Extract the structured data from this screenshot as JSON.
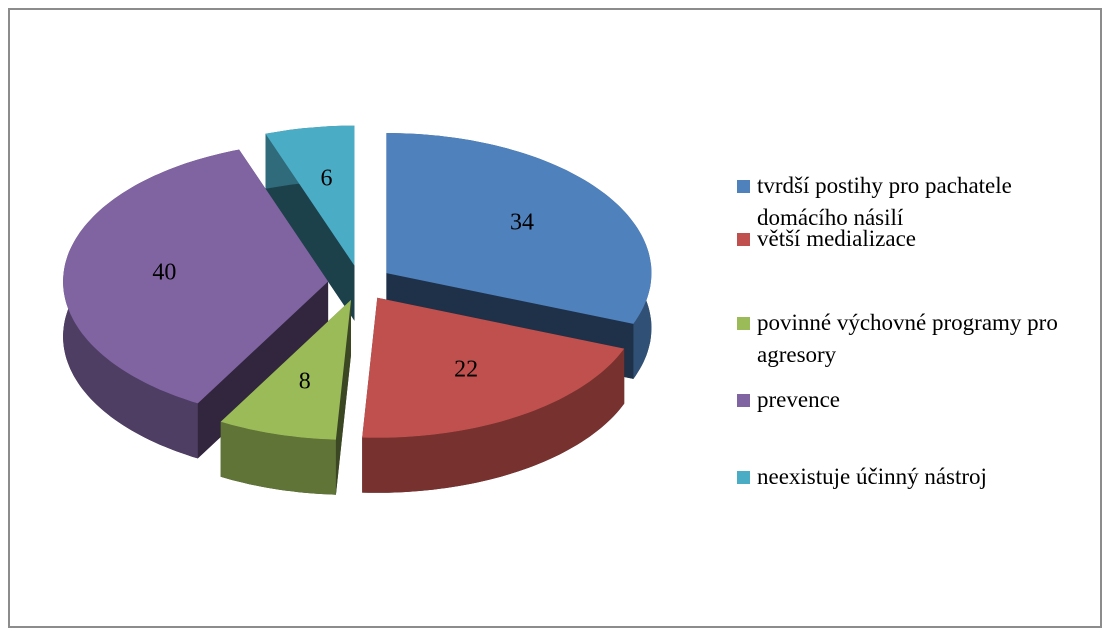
{
  "chart_data": {
    "type": "pie",
    "categories": [
      "tvrdší postihy pro pachatele domácího násilí",
      "větší medializace",
      "povinné výchovné programy pro agresory",
      "prevence",
      "neexistuje účinný nástroj"
    ],
    "values": [
      34,
      22,
      8,
      40,
      6
    ],
    "colors": [
      "#4f81bd",
      "#c0504d",
      "#9bbb59",
      "#8064a2",
      "#4bacc6"
    ],
    "exploded": true,
    "three_d": true,
    "legend": "right"
  }
}
